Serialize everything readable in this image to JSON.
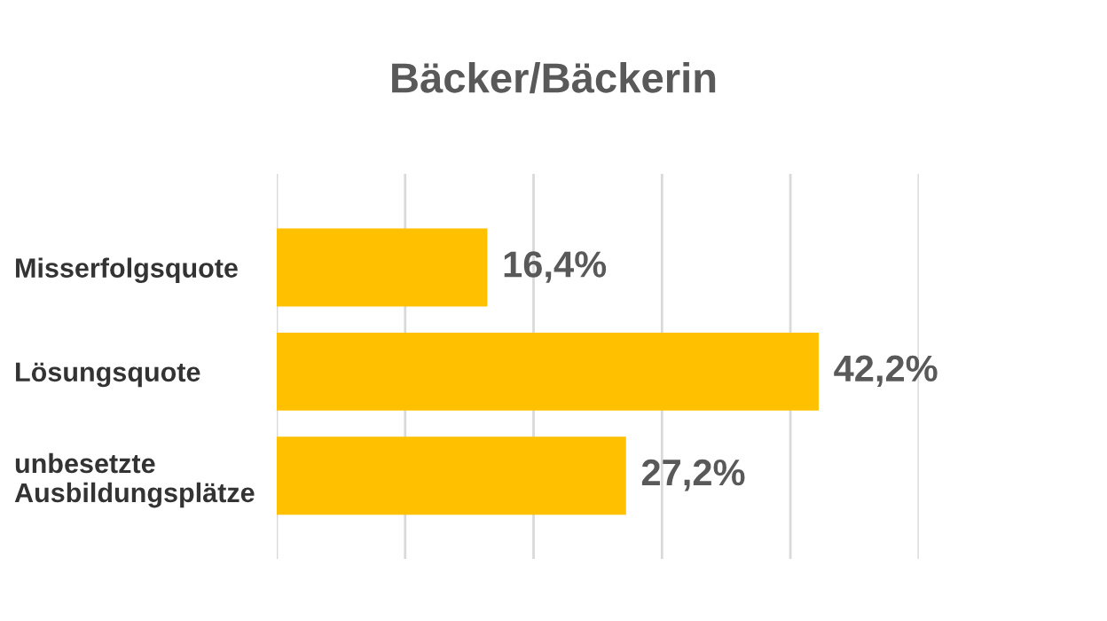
{
  "chart_data": {
    "type": "bar",
    "orientation": "horizontal",
    "title": "Bäcker/Bäckerin",
    "categories": [
      "Misserfolgsquote",
      "Lösungsquote",
      "unbesetzte\nAusbildungsplätze"
    ],
    "values": [
      16.4,
      42.2,
      27.2
    ],
    "color": "#ffc000",
    "value_labels": [
      "16,4%",
      "42,2%",
      "27,2%"
    ],
    "xlim": [
      0,
      50
    ],
    "xticks": [
      {
        "value": 0,
        "label": null
      },
      {
        "value": 10,
        "label": null
      },
      {
        "value": 20,
        "label": null
      },
      {
        "value": 30,
        "label": null
      },
      {
        "value": 40,
        "label": null
      },
      {
        "value": 50,
        "label": null
      }
    ],
    "grid": "x",
    "tick_labels": "y",
    "legend": false
  }
}
